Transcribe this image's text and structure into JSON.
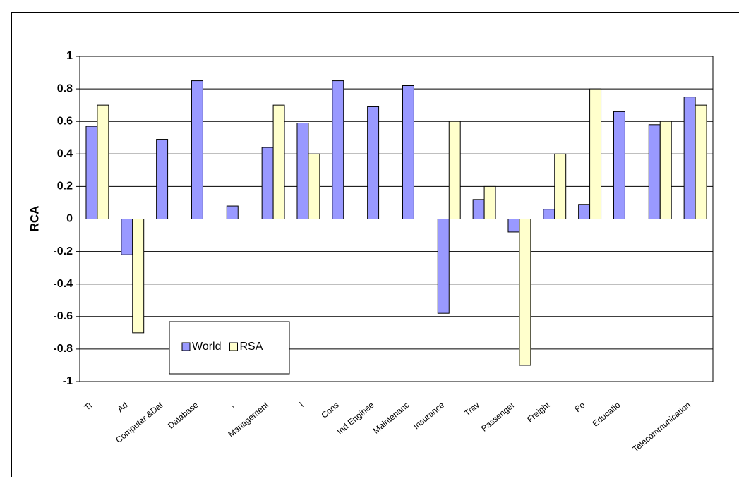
{
  "chart_data": {
    "type": "bar",
    "y_label": "RCA",
    "categories": [
      "Tr",
      "Ad",
      "Computer &Dat",
      "Database",
      ",",
      "Management",
      "I",
      "Cons",
      "Ind Enginee",
      "Maintenanc",
      "Insurance",
      "Trav",
      "Passenger",
      "Freight",
      "Po",
      "Educatio",
      null,
      "Telecommunication"
    ],
    "series": [
      {
        "name": "World",
        "color": "#9999ff",
        "values": [
          0.57,
          -0.22,
          0.49,
          0.85,
          0.08,
          0.44,
          0.59,
          0.85,
          0.69,
          0.82,
          -0.58,
          0.12,
          -0.08,
          0.06,
          0.09,
          0.66,
          0.58,
          0.75
        ]
      },
      {
        "name": "RSA",
        "color": "#ffffcc",
        "values": [
          0.7,
          -0.7,
          null,
          null,
          null,
          0.7,
          0.4,
          null,
          null,
          null,
          0.6,
          0.2,
          -0.9,
          0.4,
          0.8,
          null,
          0.6,
          0.7
        ]
      }
    ],
    "ylim": [
      -1,
      1
    ],
    "yticks": [
      -1,
      -0.8,
      -0.6,
      -0.4,
      -0.2,
      0,
      0.2,
      0.4,
      0.6,
      0.8,
      1
    ],
    "grid": true,
    "legend": "bottom-left"
  }
}
